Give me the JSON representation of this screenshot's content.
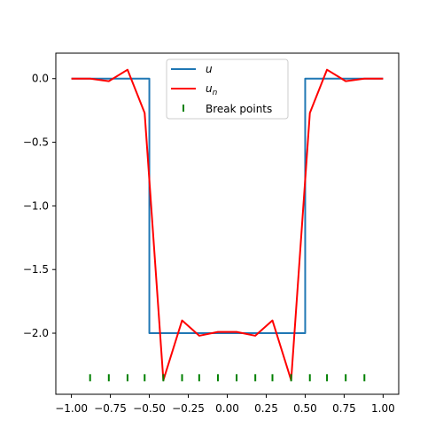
{
  "chart_data": {
    "type": "line",
    "title": "",
    "xlabel": "",
    "ylabel": "",
    "xlim": [
      -1.1,
      1.1
    ],
    "ylim": [
      -2.48,
      0.2
    ],
    "grid": false,
    "legend_position": "top-center",
    "xticks": [
      -1.0,
      -0.75,
      -0.5,
      -0.25,
      0.0,
      0.25,
      0.5,
      0.75,
      1.0
    ],
    "xtick_labels": [
      "−1.00",
      "−0.75",
      "−0.50",
      "−0.25",
      "0.00",
      "0.25",
      "0.50",
      "0.75",
      "1.00"
    ],
    "yticks": [
      0.0,
      -0.5,
      -1.0,
      -1.5,
      -2.0
    ],
    "ytick_labels": [
      "0.0",
      "−0.5",
      "−1.0",
      "−1.5",
      "−2.0"
    ],
    "series": [
      {
        "name": "u",
        "style": "line",
        "color": "#1f77b4",
        "x": [
          -1.0,
          -0.5,
          -0.5,
          -0.5,
          0.5,
          0.5,
          0.5,
          1.0
        ],
        "y": [
          0.0,
          0.0,
          -1.0,
          -2.0,
          -2.0,
          -1.0,
          0.0,
          0.0
        ]
      },
      {
        "name": "u_n",
        "style": "line",
        "color": "#ff0000",
        "x": [
          -1.0,
          -0.88,
          -0.76,
          -0.64,
          -0.53,
          -0.41,
          -0.29,
          -0.18,
          -0.06,
          0.06,
          0.18,
          0.29,
          0.41,
          0.53,
          0.64,
          0.76,
          0.88,
          1.0
        ],
        "y": [
          0.0,
          0.0,
          -0.02,
          0.07,
          -0.27,
          -2.37,
          -1.9,
          -2.02,
          -1.99,
          -1.99,
          -2.02,
          -1.9,
          -2.37,
          -0.27,
          0.07,
          -0.02,
          0.0,
          0.0
        ]
      },
      {
        "name": "Break points",
        "style": "markers",
        "marker": "|",
        "color": "#008000",
        "x": [
          -0.88,
          -0.76,
          -0.64,
          -0.53,
          -0.41,
          -0.29,
          -0.18,
          -0.06,
          0.06,
          0.18,
          0.29,
          0.41,
          0.53,
          0.64,
          0.76,
          0.88
        ],
        "y": [
          -2.35,
          -2.35,
          -2.35,
          -2.35,
          -2.35,
          -2.35,
          -2.35,
          -2.35,
          -2.35,
          -2.35,
          -2.35,
          -2.35,
          -2.35,
          -2.35,
          -2.35,
          -2.35
        ]
      }
    ]
  },
  "legend": {
    "entries": [
      {
        "main": "u",
        "sub": ""
      },
      {
        "main": "u",
        "sub": "n"
      },
      {
        "main": "Break points",
        "sub": ""
      }
    ]
  }
}
